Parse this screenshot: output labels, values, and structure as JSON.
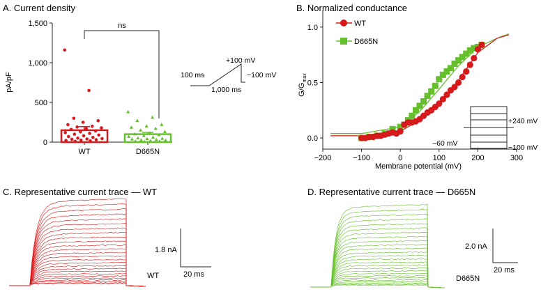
{
  "panels": {
    "a": {
      "title": "A. Current density"
    },
    "b": {
      "title": "B. Normalized conductance"
    },
    "c": {
      "title": "C. Representative current trace — WT"
    },
    "d": {
      "title": "D. Representative current trace — D665N"
    }
  },
  "colors": {
    "wt": "#d7191c",
    "d665n": "#66c02c",
    "axis": "#222222"
  },
  "chart_data": [
    {
      "type": "bar",
      "panel": "A",
      "title": "A. Current density",
      "ylabel": "pA/pF",
      "ylim": [
        0,
        1500
      ],
      "yticks": [
        0,
        500,
        1000,
        1500
      ],
      "ytick_labels": [
        "0",
        "500",
        "1,000",
        "1,500"
      ],
      "categories": [
        "WT",
        "D665N"
      ],
      "values": [
        150,
        100
      ],
      "errors": [
        45,
        22
      ],
      "points": {
        "WT": [
          1160,
          650,
          300,
          270,
          250,
          220,
          200,
          190,
          180,
          170,
          160,
          140,
          130,
          120,
          110,
          100,
          90,
          80,
          70,
          60,
          50,
          45,
          40,
          35,
          30,
          25,
          20,
          15,
          10
        ],
        "D665N": [
          380,
          310,
          270,
          220,
          200,
          185,
          170,
          150,
          130,
          115,
          100,
          90,
          80,
          70,
          60,
          50,
          45,
          40,
          35,
          30,
          25,
          20,
          15,
          10,
          8,
          5
        ]
      },
      "annotation": "ns",
      "protocol": {
        "v_top": "+100 mV",
        "t_hold": "100 ms",
        "t_ramp": "1,000 ms",
        "v_end": "−100 mV"
      }
    },
    {
      "type": "scatter",
      "panel": "B",
      "title": "B. Normalized conductance",
      "xlabel": "Membrane potential (mV)",
      "ylabel": "G/G",
      "ylabel_sub": "max",
      "xlim": [
        -200,
        300
      ],
      "ylim": [
        -0.1,
        1.15
      ],
      "xticks": [
        -200,
        -100,
        0,
        100,
        200,
        300
      ],
      "xtick_labels": [
        "−200",
        "−100",
        "0",
        "100",
        "200",
        "300"
      ],
      "yticks": [
        0,
        0.5,
        1
      ],
      "ytick_labels": [
        "0.0",
        "0.5",
        "1.0"
      ],
      "series": [
        {
          "name": "WT",
          "x": [
            -100,
            -90,
            -80,
            -70,
            -60,
            -50,
            -40,
            -30,
            -20,
            -10,
            0,
            10,
            20,
            30,
            40,
            50,
            60,
            70,
            80,
            90,
            100,
            110,
            120,
            130,
            140,
            150,
            160,
            170,
            180,
            190,
            200,
            210
          ],
          "y": [
            0.0,
            0.0,
            0.01,
            0.01,
            0.02,
            0.02,
            0.03,
            0.04,
            0.05,
            0.04,
            0.06,
            0.12,
            0.14,
            0.14,
            0.15,
            0.17,
            0.2,
            0.23,
            0.25,
            0.28,
            0.31,
            0.35,
            0.39,
            0.43,
            0.46,
            0.5,
            0.55,
            0.6,
            0.66,
            0.72,
            0.8,
            0.84
          ],
          "fit": {
            "x": [
              -180,
              -100,
              0,
              50,
              100,
              150,
              200,
              250,
              280
            ],
            "y": [
              0.02,
              0.02,
              0.06,
              0.16,
              0.3,
              0.52,
              0.77,
              0.9,
              0.93
            ]
          }
        },
        {
          "name": "D665N",
          "x": [
            -100,
            -80,
            -60,
            -40,
            -20,
            0,
            10,
            20,
            30,
            40,
            50,
            60,
            70,
            80,
            90,
            100,
            110,
            120,
            130,
            140,
            150,
            160,
            170,
            180,
            190,
            200,
            210
          ],
          "y": [
            0.0,
            0.01,
            0.02,
            0.04,
            0.08,
            0.1,
            0.12,
            0.16,
            0.2,
            0.25,
            0.29,
            0.33,
            0.38,
            0.42,
            0.47,
            0.53,
            0.57,
            0.6,
            0.63,
            0.67,
            0.7,
            0.73,
            0.76,
            0.79,
            0.81,
            0.82,
            0.84
          ],
          "fit": {
            "x": [
              -180,
              -100,
              0,
              50,
              100,
              150,
              200,
              250,
              280
            ],
            "y": [
              0.04,
              0.04,
              0.1,
              0.24,
              0.44,
              0.65,
              0.82,
              0.9,
              0.94
            ]
          }
        }
      ],
      "protocol": {
        "v_top": "+240 mV",
        "v_hold": "−60 mV",
        "v_bottom": "−100 mV"
      }
    },
    {
      "type": "line",
      "panel": "C",
      "title": "C. Representative current trace — WT",
      "series_label": "WT",
      "scale_current": "1.8 nA",
      "scale_time": "20 ms"
    },
    {
      "type": "line",
      "panel": "D",
      "title": "D. Representative current trace — D665N",
      "series_label": "D665N",
      "scale_current": "2.0 nA",
      "scale_time": "20 ms"
    }
  ]
}
